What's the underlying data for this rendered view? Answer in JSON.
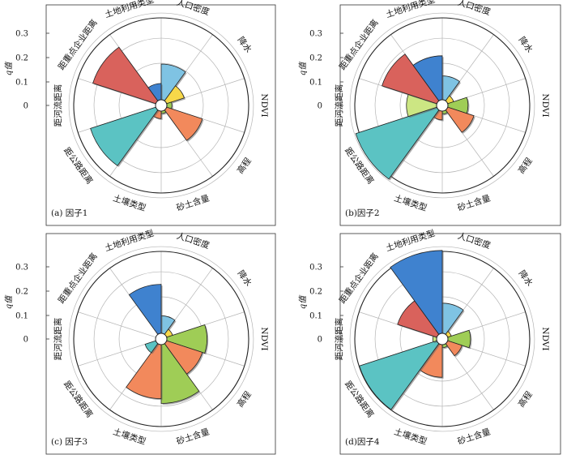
{
  "y_axis_label": "q值",
  "chart_data": [
    {
      "type": "polar-bar",
      "label": "(a) 因子1",
      "categories": [
        "人口密度",
        "降水",
        "NDVI",
        "高程",
        "砂土含量",
        "土壤类型",
        "距公路距离",
        "距河流距离",
        "距重点企业距离",
        "土地利用类型"
      ],
      "values": [
        0.142,
        0.074,
        0.02,
        0.15,
        0.01,
        0.03,
        0.274,
        0.0,
        0.264,
        0.065
      ],
      "ylim": [
        0,
        0.3
      ],
      "yticks": [
        "0",
        "0.1",
        "0.2",
        "0.3"
      ],
      "grid": true
    },
    {
      "type": "polar-bar",
      "label": "(b)因子2",
      "categories": [
        "人口密度",
        "降水",
        "NDVI",
        "高程",
        "砂土含量",
        "土壤类型",
        "距公路距离",
        "距河流距离",
        "距重点企业距离",
        "土地利用类型"
      ],
      "values": [
        0.095,
        0.025,
        0.08,
        0.11,
        0.012,
        0.035,
        0.34,
        0.12,
        0.23,
        0.175
      ],
      "ylim": [
        0,
        0.3
      ],
      "yticks": [
        "0",
        "0.1",
        "0.2",
        "0.3"
      ],
      "grid": true
    },
    {
      "type": "polar-bar",
      "label": "(c) 因子3",
      "categories": [
        "人口密度",
        "降水",
        "NDVI",
        "高程",
        "砂土含量",
        "土壤类型",
        "距公路距离",
        "距河流距离",
        "距重点企业距离",
        "土地利用类型"
      ],
      "values": [
        0.07,
        0.025,
        0.16,
        0.15,
        0.234,
        0.215,
        0.045,
        0.0,
        0.0,
        0.195
      ],
      "ylim": [
        0,
        0.3
      ],
      "yticks": [
        "0",
        "0.1",
        "0.2",
        "0.3"
      ],
      "grid": true
    },
    {
      "type": "polar-bar",
      "label": "(d)因子4",
      "categories": [
        "人口密度",
        "降水",
        "NDVI",
        "高程",
        "砂土含量",
        "土壤类型",
        "距公路距离",
        "距河流距离",
        "距重点企业距离",
        "土地利用类型"
      ],
      "values": [
        0.12,
        0.015,
        0.09,
        0.06,
        0.012,
        0.13,
        0.325,
        0.015,
        0.165,
        0.33
      ],
      "ylim": [
        0,
        0.3
      ],
      "yticks": [
        "0",
        "0.1",
        "0.2",
        "0.3"
      ],
      "grid": true
    }
  ],
  "colors": [
    "#7fc3e3",
    "#f7d84a",
    "#9fcd56",
    "#f2895c",
    "#9fcd56",
    "#f2895c",
    "#5bc3c3",
    "#cce683",
    "#d9625c",
    "#3f82cf"
  ]
}
